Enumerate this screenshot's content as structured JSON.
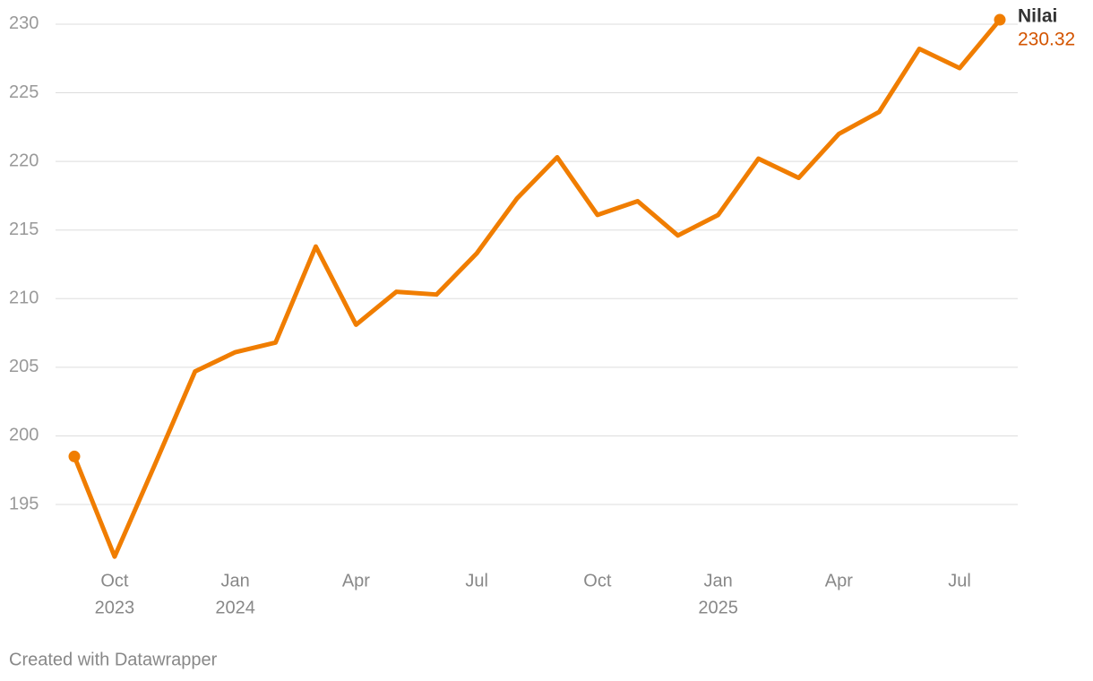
{
  "chart_data": {
    "type": "line",
    "x": [
      "2023-09",
      "2023-10",
      "2023-11",
      "2023-12",
      "2024-01",
      "2024-02",
      "2024-03",
      "2024-04",
      "2024-05",
      "2024-06",
      "2024-07",
      "2024-08",
      "2024-09",
      "2024-10",
      "2024-11",
      "2024-12",
      "2025-01",
      "2025-02",
      "2025-03",
      "2025-04",
      "2025-05",
      "2025-06",
      "2025-07",
      "2025-08"
    ],
    "series": [
      {
        "name": "Nilai",
        "color": "#f07d00",
        "label_color": "#d35400",
        "values": [
          198.5,
          191.2,
          197.9,
          204.7,
          206.1,
          206.8,
          213.8,
          208.1,
          210.5,
          210.3,
          213.3,
          217.3,
          220.3,
          216.1,
          217.1,
          214.6,
          216.1,
          220.2,
          218.8,
          222.0,
          223.6,
          228.2,
          226.8,
          230.32
        ]
      }
    ],
    "ylim": [
      191,
      230.5
    ],
    "yticks": [
      195,
      200,
      205,
      210,
      215,
      220,
      225,
      230
    ],
    "xticks": [
      {
        "value": "2023-10",
        "label": "Oct",
        "year": "2023"
      },
      {
        "value": "2024-01",
        "label": "Jan",
        "year": "2024"
      },
      {
        "value": "2024-04",
        "label": "Apr"
      },
      {
        "value": "2024-07",
        "label": "Jul"
      },
      {
        "value": "2024-10",
        "label": "Oct"
      },
      {
        "value": "2025-01",
        "label": "Jan",
        "year": "2025"
      },
      {
        "value": "2025-04",
        "label": "Apr"
      },
      {
        "value": "2025-07",
        "label": "Jul"
      }
    ],
    "grid": true,
    "footer": "Created with Datawrapper"
  }
}
